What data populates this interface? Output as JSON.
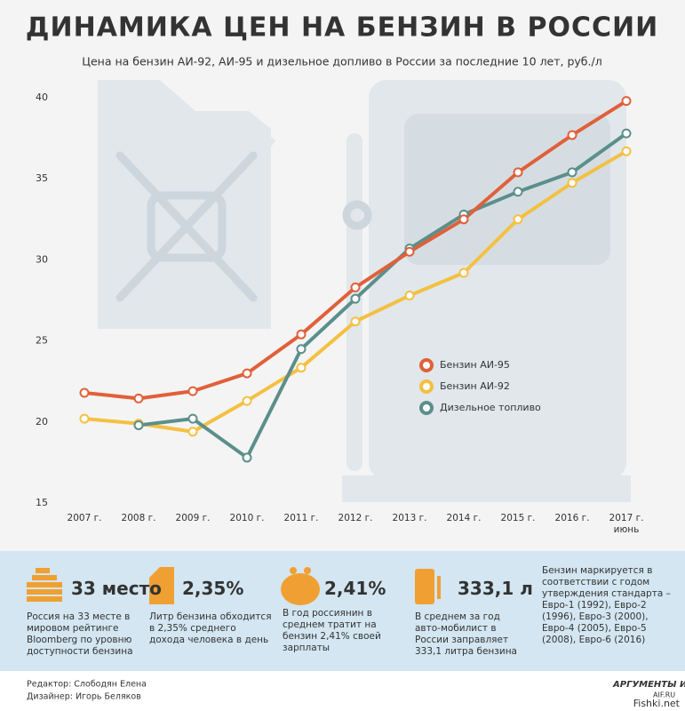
{
  "chart_data": {
    "type": "line",
    "title": "ДИНАМИКА ЦЕН НА БЕНЗИН В РОССИИ",
    "subtitle": "Цена на бензин АИ-92, АИ-95 и дизельное допливо в России за последние 10 лет, руб./л",
    "categories": [
      "2007 г.",
      "2008 г.",
      "2009 г.",
      "2010 г.",
      "2011 г.",
      "2012 г.",
      "2013 г.",
      "2014 г.",
      "2015 г.",
      "2016 г.",
      "2017 г.\nиюнь"
    ],
    "series": [
      {
        "name": "Бензин АИ-92",
        "color": "#f4c042",
        "values": [
          20.2,
          19.9,
          19.4,
          21.3,
          23.35,
          26.2,
          27.8,
          29.2,
          32.5,
          34.75,
          36.7
        ]
      },
      {
        "name": "Дизельное топливо",
        "color": "#5b8f8b",
        "values": [
          null,
          19.8,
          20.2,
          17.8,
          24.5,
          27.6,
          30.7,
          32.8,
          34.2,
          35.4,
          37.8
        ]
      },
      {
        "name": "Бензин АИ-95",
        "color": "#e0603a",
        "values": [
          21.8,
          21.45,
          21.9,
          23.0,
          25.4,
          28.3,
          30.5,
          32.5,
          35.4,
          37.7,
          39.8
        ]
      }
    ],
    "legend_order": [
      2,
      0,
      1
    ],
    "ylim": [
      15,
      40
    ],
    "yticks": [
      15,
      20,
      25,
      30,
      35,
      40
    ],
    "grid": false
  },
  "facts": [
    {
      "headline": "33 место",
      "text": "Россия на 33 месте в мировом рейтинге Bloomberg по уровню доступности бензина"
    },
    {
      "headline": "2,35%",
      "text": "Литр бензина обходится в 2,35% среднего дохода человека в день"
    },
    {
      "headline": "2,41%",
      "text": "В год россиянин в среднем тратит на бензин 2,41% своей зарплаты"
    },
    {
      "headline": "333,1 л",
      "text": "В среднем за год авто-мобилист в России заправляет 333,1 литра бензина"
    },
    {
      "text": "Бензин маркируется в соответствии с годом утверждения стандарта – Евро-1 (1992), Евро-2 (1996), Евро-3 (2000), Евро-4 (2005), Евро-5 (2008), Евро-6 (2016)"
    }
  ],
  "credits": {
    "editor": "Редактор: Слободян Елена",
    "designer": "Дизайнер: Игорь Беляков",
    "logo": "АРГУМЕНТЫ И ФАКТЫ",
    "logo_site": "AIF.RU",
    "watermark": "Fishki.net"
  }
}
